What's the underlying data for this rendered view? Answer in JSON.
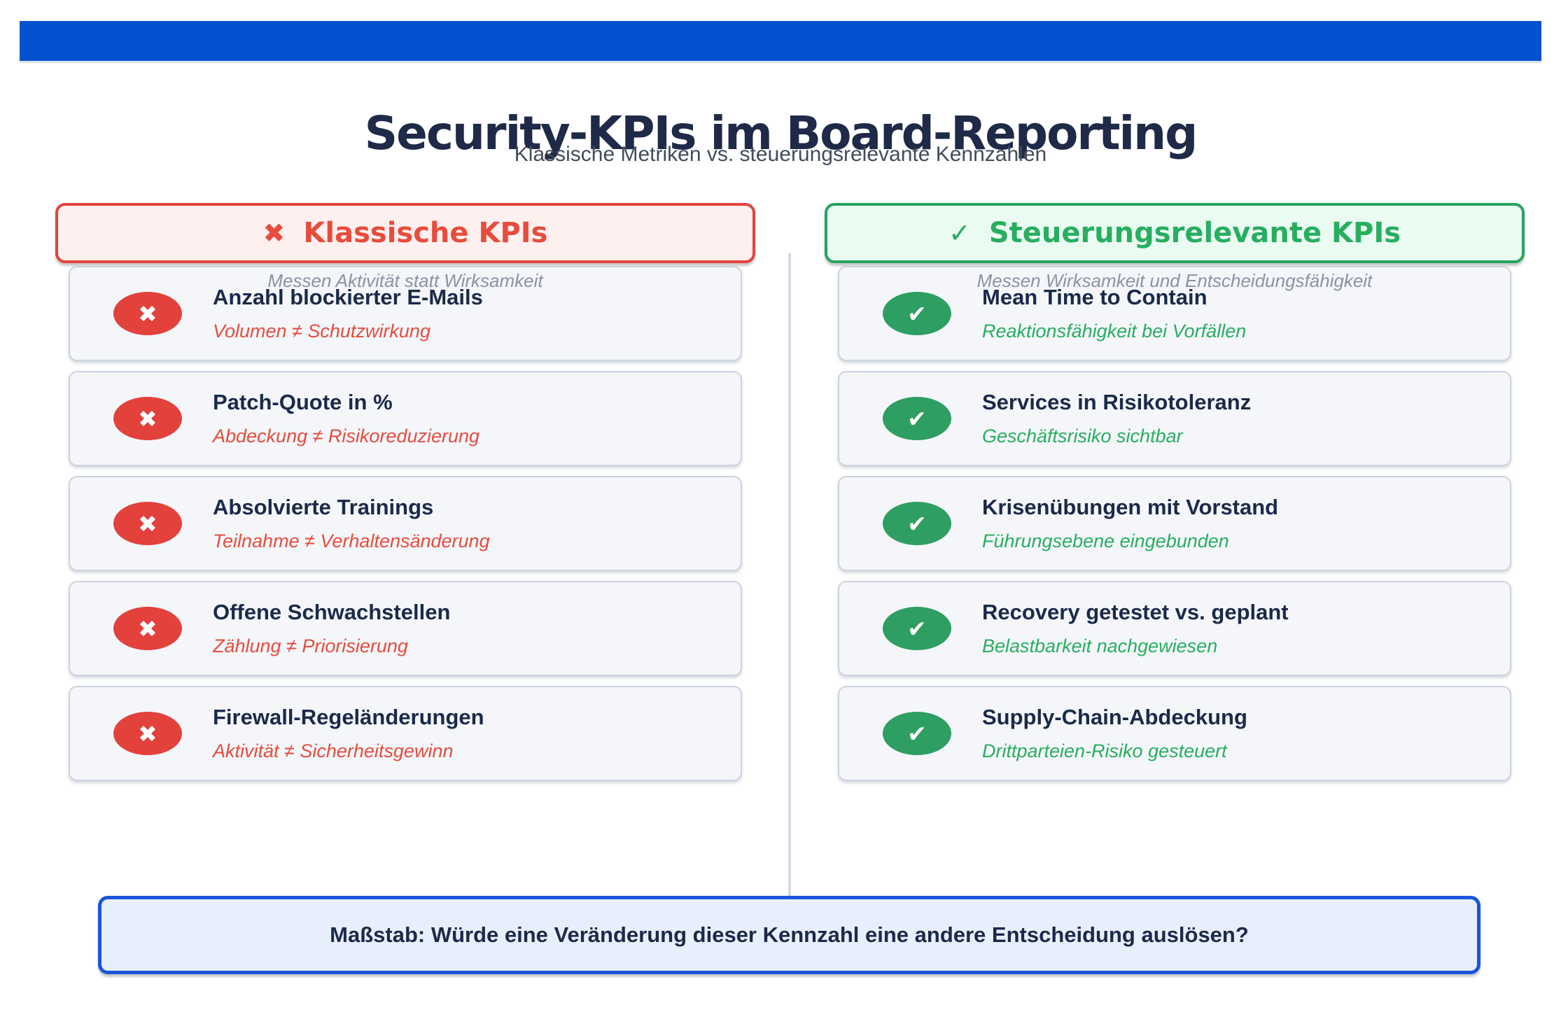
{
  "page": {
    "title": "Security-KPIs im Board-Reporting",
    "subtitle": "Klassische Metriken vs. steuerungsrelevante Kennzahlen"
  },
  "colors": {
    "topbar_blue": "#0452cf",
    "red": "#e74c3c",
    "green": "#27ae60",
    "navy": "#1b2a4a",
    "card_bg": "#f4f6fa",
    "footer_border_blue": "#1a56db"
  },
  "columns": [
    {
      "id": "klassische",
      "header": {
        "glyph": "✖",
        "label": "Klassische KPIs"
      },
      "caption": "Messen Aktivität statt Wirksamkeit",
      "badge_glyph": "✖",
      "items": [
        {
          "title": "Anzahl blockierter E-Mails",
          "note": "Volumen ≠ Schutzwirkung"
        },
        {
          "title": "Patch-Quote in %",
          "note": "Abdeckung ≠ Risikoreduzierung"
        },
        {
          "title": "Absolvierte Trainings",
          "note": "Teilnahme ≠ Verhaltensänderung"
        },
        {
          "title": "Offene Schwachstellen",
          "note": "Zählung ≠ Priorisierung"
        },
        {
          "title": "Firewall-Regeländerungen",
          "note": "Aktivität ≠ Sicherheitsgewinn"
        }
      ]
    },
    {
      "id": "steuerungsrelevante",
      "header": {
        "glyph": "✓",
        "label": "Steuerungsrelevante KPIs"
      },
      "caption": "Messen Wirksamkeit und Entscheidungsfähigkeit",
      "badge_glyph": "✔",
      "items": [
        {
          "title": "Mean Time to Contain",
          "note": "Reaktionsfähigkeit bei Vorfällen"
        },
        {
          "title": "Services in Risikotoleranz",
          "note": "Geschäftsrisiko sichtbar"
        },
        {
          "title": "Krisenübungen mit Vorstand",
          "note": "Führungsebene eingebunden"
        },
        {
          "title": "Recovery getestet vs. geplant",
          "note": "Belastbarkeit nachgewiesen"
        },
        {
          "title": "Supply-Chain-Abdeckung",
          "note": "Drittparteien-Risiko gesteuert"
        }
      ]
    }
  ],
  "footer": {
    "text": "Maßstab: Würde eine Veränderung dieser Kennzahl eine andere Entscheidung auslösen?"
  }
}
